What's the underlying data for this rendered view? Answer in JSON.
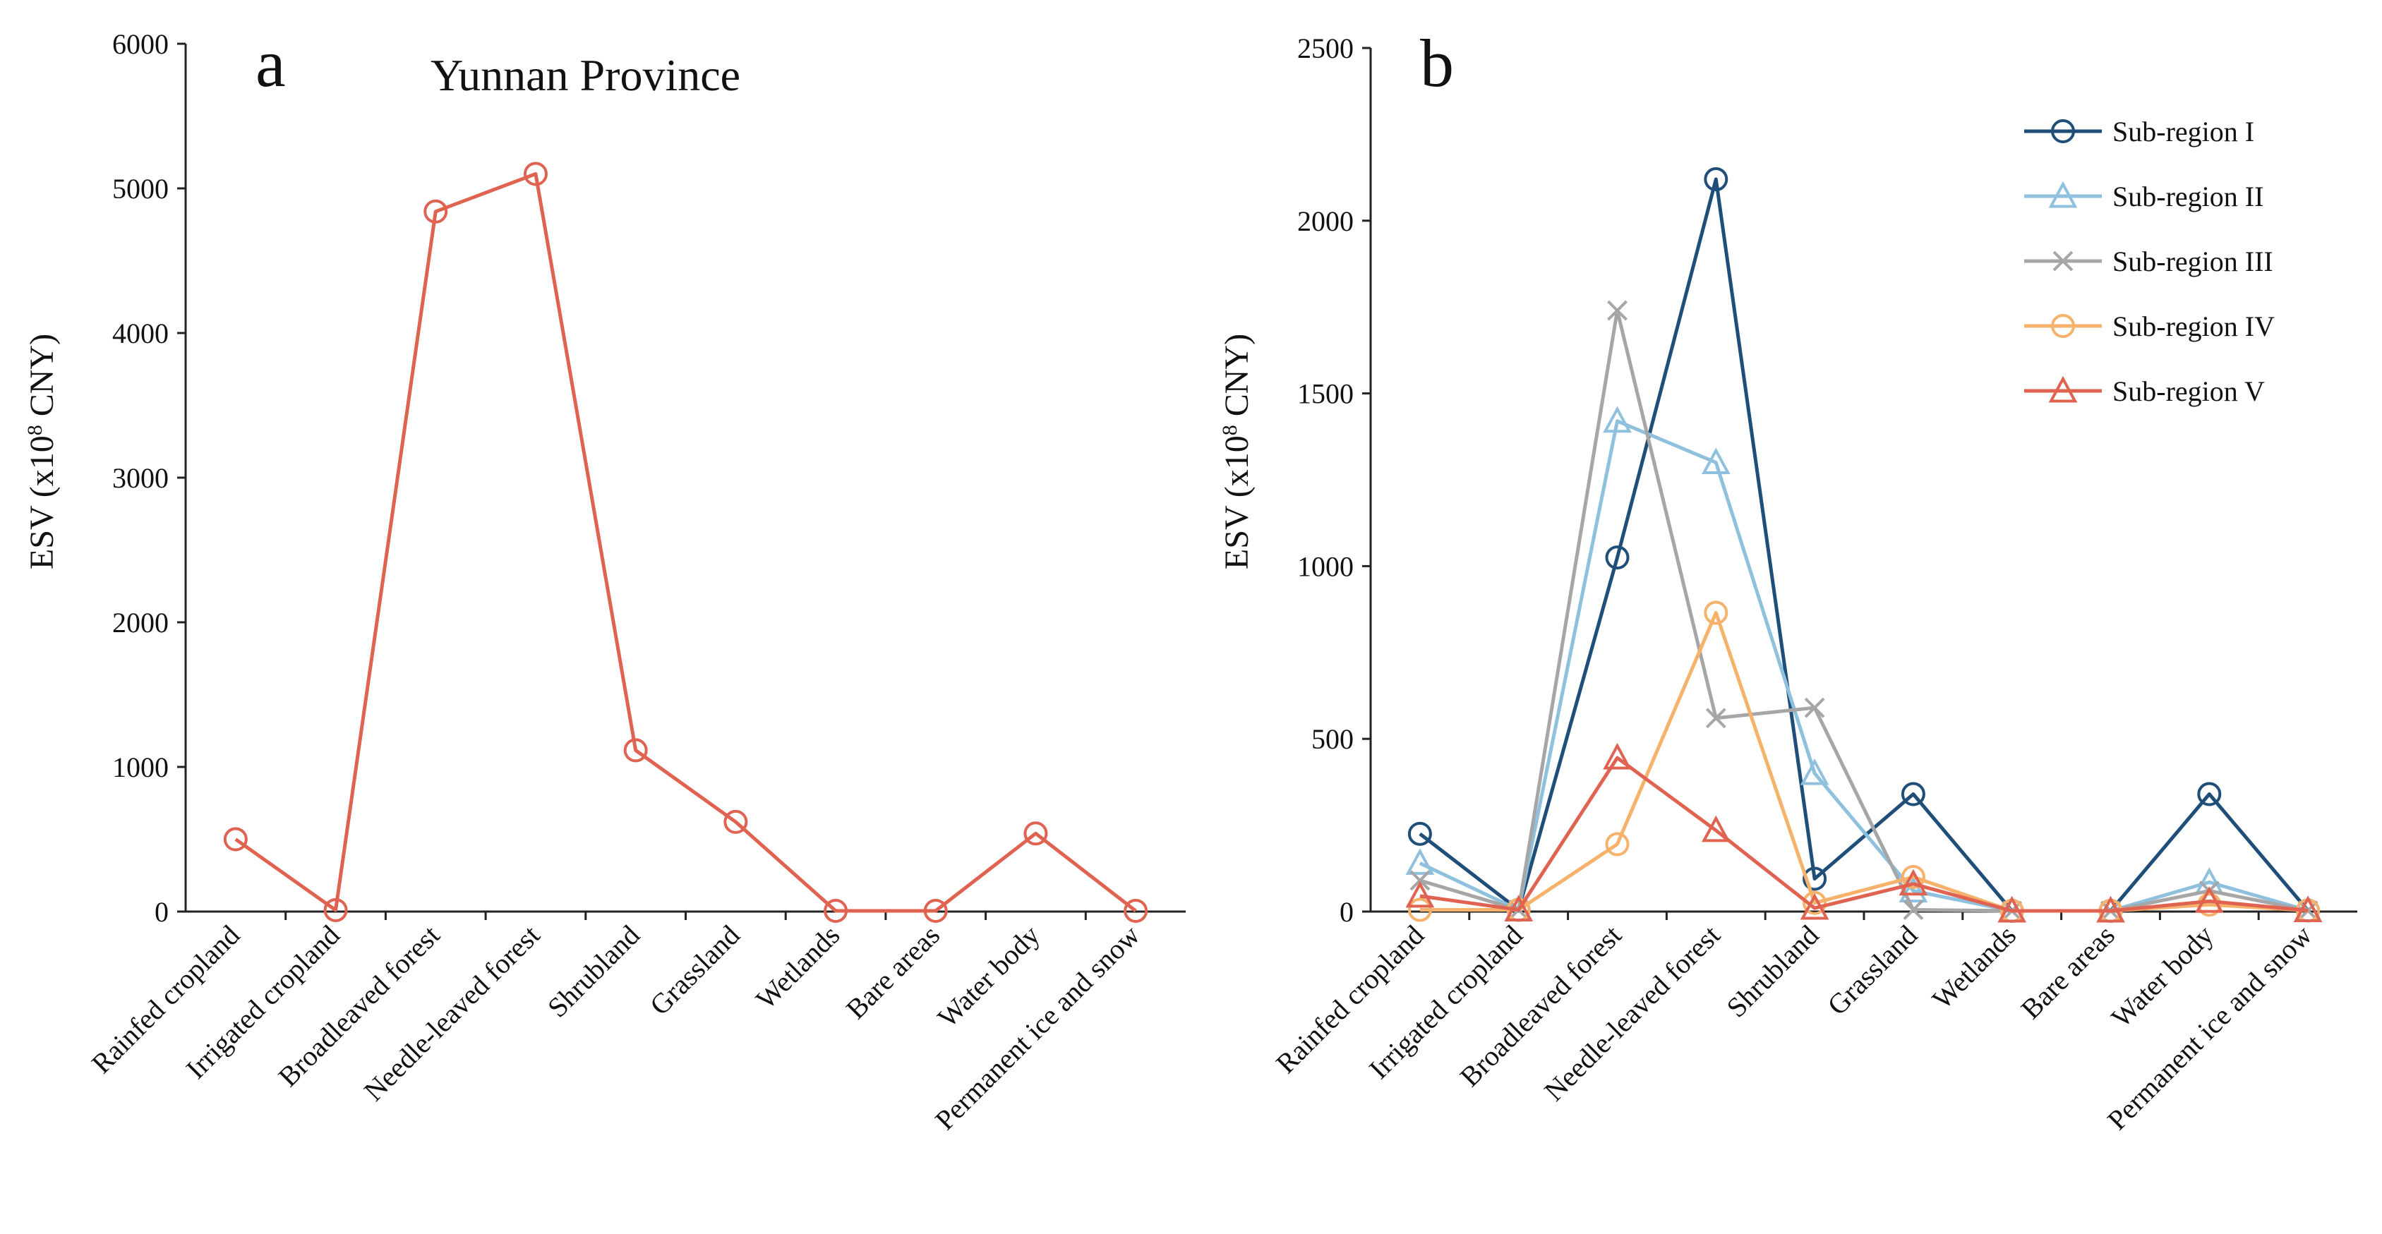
{
  "chart_data": [
    {
      "type": "line",
      "panel_label": "a",
      "title": "Yunnan Province",
      "ylabel_main": "ESV (x10",
      "ylabel_sup": "8",
      "ylabel_tail": " CNY)",
      "ylim": [
        0,
        6000
      ],
      "yticks": [
        "0",
        "1000",
        "2000",
        "3000",
        "4000",
        "5000",
        "6000"
      ],
      "categories": [
        "Rainfed cropland",
        "Irrigated cropland",
        "Broadleaved forest",
        "Needle-leaved forest",
        "Shrubland",
        "Grassland",
        "Wetlands",
        "Bare areas",
        "Water body",
        "Permanent ice and snow"
      ],
      "series": [
        {
          "name": "Yunnan Province",
          "marker": "circle",
          "color": "#e06351",
          "values": [
            500,
            10,
            4840,
            5100,
            1115,
            620,
            5,
            5,
            540,
            5
          ]
        }
      ]
    },
    {
      "type": "line",
      "panel_label": "b",
      "title": "",
      "ylabel_main": "ESV (x10",
      "ylabel_sup": "8",
      "ylabel_tail": " CNY)",
      "ylim": [
        0,
        2500
      ],
      "yticks": [
        "0",
        "500",
        "1000",
        "1500",
        "2000",
        "2500"
      ],
      "legend_position": "top-right",
      "categories": [
        "Rainfed cropland",
        "Irrigated cropland",
        "Broadleaved forest",
        "Needle-leaved forest",
        "Shrubland",
        "Grassland",
        "Wetlands",
        "Bare areas",
        "Water body",
        "Permanent ice and snow"
      ],
      "series": [
        {
          "name": "Sub-region I",
          "marker": "circle",
          "color": "#1f4e79",
          "values": [
            225,
            5,
            1025,
            2120,
            95,
            340,
            2,
            2,
            340,
            3
          ]
        },
        {
          "name": "Sub-region II",
          "marker": "triangle",
          "color": "#8fc0dd",
          "values": [
            140,
            5,
            1420,
            1300,
            400,
            60,
            2,
            2,
            85,
            3
          ]
        },
        {
          "name": "Sub-region III",
          "marker": "cross",
          "color": "#a6a6a6",
          "values": [
            90,
            5,
            1740,
            560,
            590,
            5,
            2,
            2,
            60,
            3
          ]
        },
        {
          "name": "Sub-region IV",
          "marker": "circle",
          "color": "#f6b26b",
          "values": [
            5,
            5,
            195,
            865,
            25,
            100,
            2,
            2,
            20,
            3
          ]
        },
        {
          "name": "Sub-region V",
          "marker": "triangle",
          "color": "#e06351",
          "values": [
            45,
            5,
            445,
            235,
            10,
            80,
            2,
            2,
            30,
            3
          ]
        }
      ]
    }
  ]
}
